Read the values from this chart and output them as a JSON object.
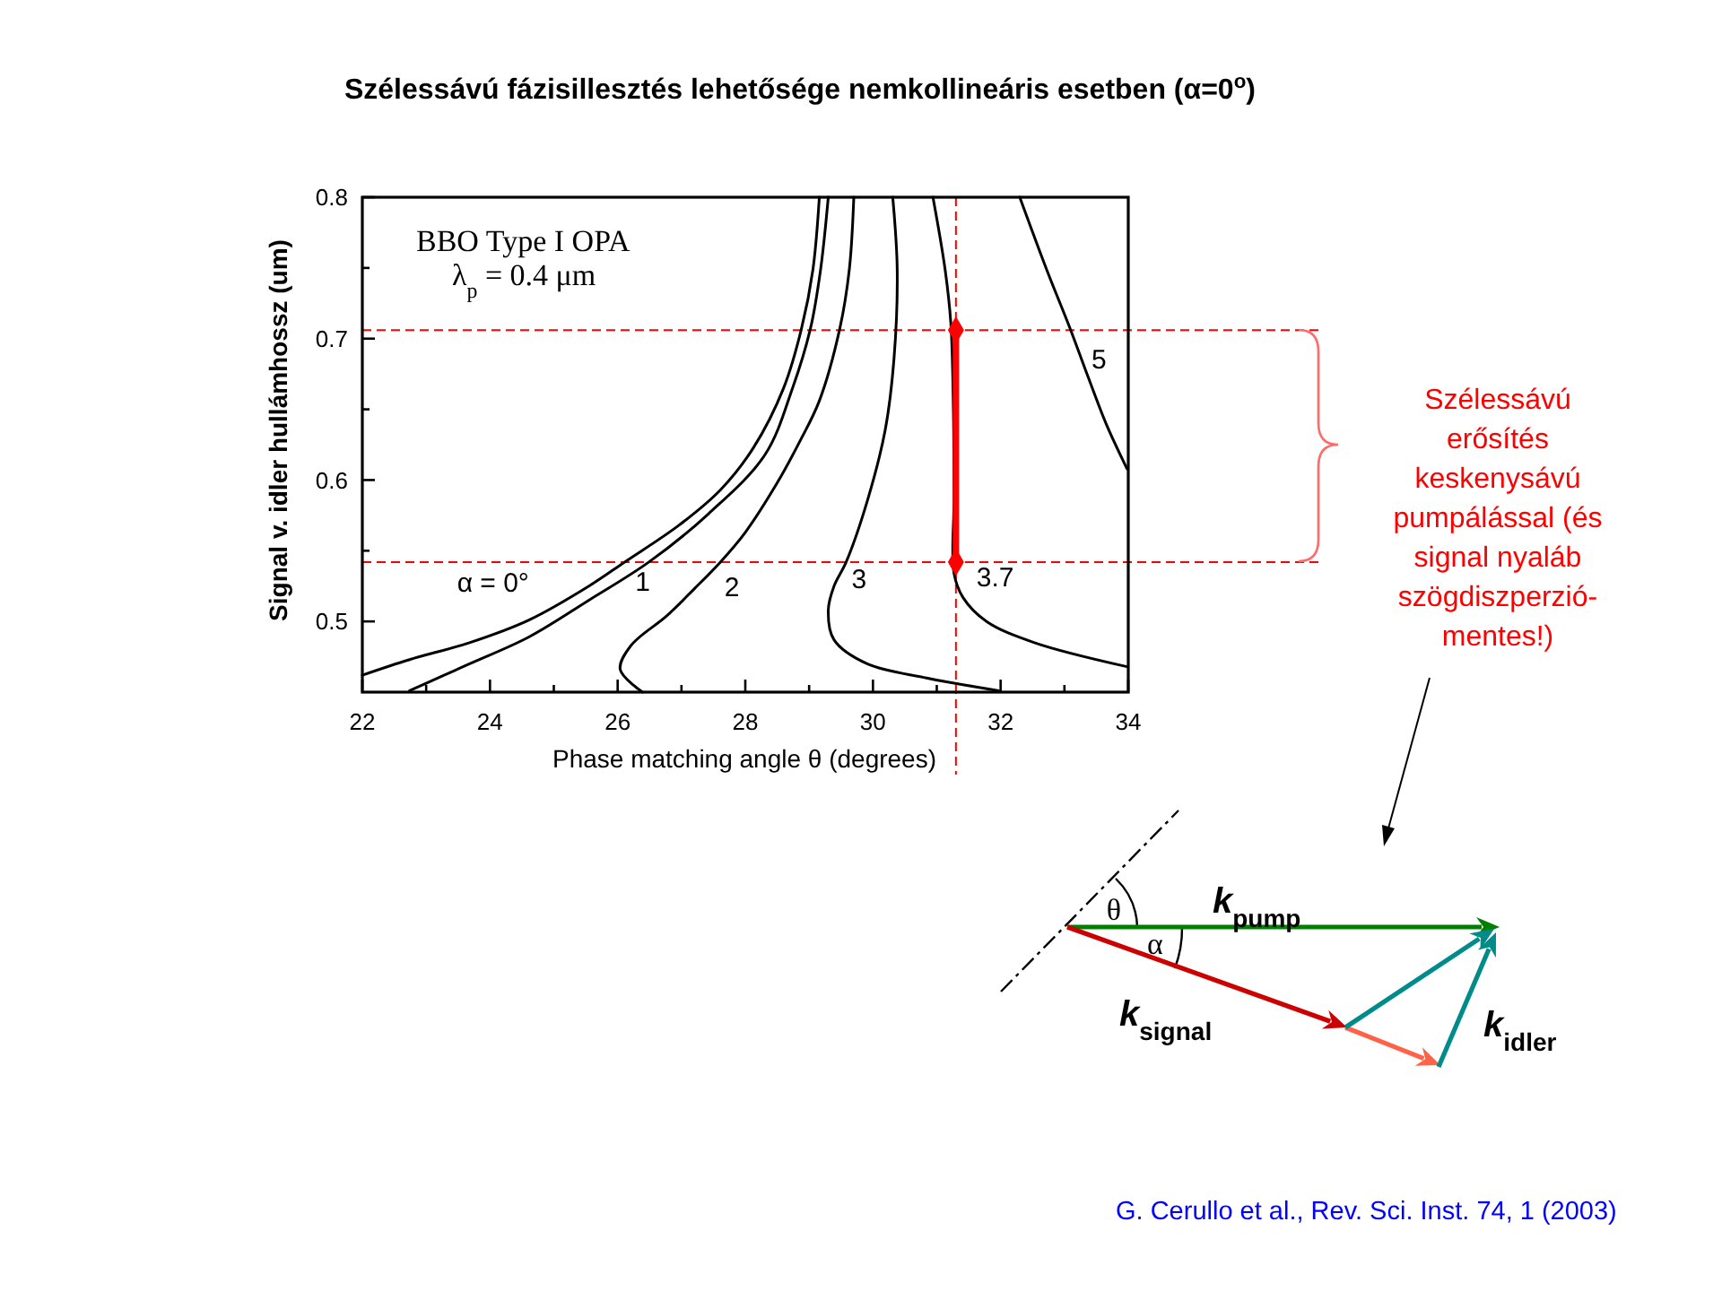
{
  "chart_data": {
    "type": "line",
    "title": "Szélessávú fázisillesztés lehetősége nemkollineáris esetben (α=0$^{o}$)",
    "xlabel": "Phase matching angle θ (degrees)",
    "ylabel": "Signal v. idler hullámhossz (um)",
    "xlim": [
      22,
      34
    ],
    "ylim": [
      0.45,
      0.8
    ],
    "xticks": [
      22,
      {
        "value": 23,
        "label": null
      },
      24,
      {
        "value": 25,
        "label": null
      },
      26,
      {
        "value": 27,
        "label": null
      },
      28,
      {
        "value": 29,
        "label": null
      },
      30,
      {
        "value": 31,
        "label": null
      },
      32,
      {
        "value": 33,
        "label": null
      },
      34
    ],
    "yticks": [
      0.5,
      {
        "value": 0.55,
        "label": null
      },
      0.6,
      {
        "value": 0.65,
        "label": null
      },
      0.7,
      {
        "value": 0.75,
        "label": null
      },
      0.8
    ],
    "series": [
      {
        "name": "α = 0°",
        "color": "#000000",
        "x": [
          22.0,
          22.74,
          23.68,
          24.61,
          25.55,
          26.11,
          26.96,
          27.61,
          28.13,
          28.6,
          28.88,
          29.06,
          29.16
        ],
        "values": [
          0.462,
          0.473,
          0.485,
          0.501,
          0.525,
          0.542,
          0.568,
          0.593,
          0.623,
          0.665,
          0.707,
          0.749,
          0.8
        ]
      },
      {
        "name": "1",
        "color": "#000000",
        "x": [
          22.74,
          23.68,
          24.61,
          25.55,
          26.49,
          27.42,
          28.31,
          28.74,
          29.02,
          29.18,
          29.3
        ],
        "values": [
          0.451,
          0.47,
          0.489,
          0.515,
          0.542,
          0.576,
          0.618,
          0.665,
          0.707,
          0.749,
          0.8
        ]
      },
      {
        "name": "2",
        "color": "#000000",
        "x": [
          26.39,
          26.04,
          26.21,
          26.77,
          27.2,
          27.61,
          28.0,
          28.5,
          28.85,
          29.16,
          29.48,
          29.63,
          29.7
        ],
        "values": [
          0.45,
          0.466,
          0.483,
          0.504,
          0.523,
          0.542,
          0.563,
          0.598,
          0.627,
          0.656,
          0.707,
          0.749,
          0.8
        ]
      },
      {
        "name": "3",
        "color": "#000000",
        "x": [
          31.97,
          30.84,
          29.91,
          29.39,
          29.3,
          29.39,
          29.58,
          29.91,
          30.19,
          30.33,
          30.38,
          30.31
        ],
        "values": [
          0.451,
          0.46,
          0.47,
          0.487,
          0.508,
          0.525,
          0.542,
          0.585,
          0.635,
          0.686,
          0.749,
          0.8
        ]
      },
      {
        "name": "3.7",
        "color": "#000000",
        "x": [
          30.94,
          31.13,
          31.22,
          31.26,
          31.27,
          31.27,
          31.41,
          31.78,
          32.53,
          33.98
        ],
        "values": [
          0.8,
          0.749,
          0.711,
          0.65,
          0.587,
          0.534,
          0.517,
          0.5,
          0.485,
          0.468
        ]
      },
      {
        "name": "5",
        "color": "#000000",
        "x": [
          32.3,
          32.72,
          33.09,
          33.37,
          33.66,
          33.98
        ],
        "values": [
          0.8,
          0.749,
          0.707,
          0.673,
          0.639,
          0.608
        ]
      },
      {
        "color": "#ff0000",
        "x": [
          31.3,
          31.3
        ],
        "values": [
          0.706,
          0.542
        ],
        "marker": "diamond"
      }
    ],
    "ref_lines": [
      {
        "axis": "y",
        "value": 0.706,
        "color": "#ff0000",
        "line_style": "dashed"
      },
      {
        "axis": "y",
        "value": 0.542,
        "color": "#ff0000",
        "line_style": "dashed"
      },
      {
        "axis": "x",
        "value": 31.3,
        "color": "#ff0000",
        "line_style": "dashed"
      }
    ],
    "annotations": [
      "BBO Type I OPA",
      "λ$_{p}$ = 0.4 μm",
      "Szélessávú\nerősítés\nkeskenysávú\npumpálással (és\nsignal nyaláb\nszögdiszperzió-\nmentes!)",
      "θ",
      "α",
      "k$_{pump}$",
      "k$_{signal}$",
      "k$_{idler}$",
      "G. Cerullo et al., Rev. Sci. Inst.  74, 1 (2003)"
    ]
  }
}
